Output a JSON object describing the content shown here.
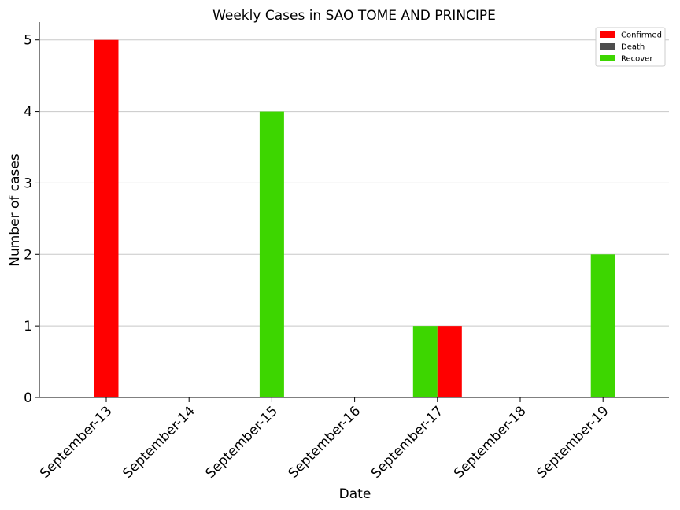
{
  "chart_data": {
    "type": "bar",
    "title": "Weekly Cases in SAO TOME AND PRINCIPE",
    "xlabel": "Date",
    "ylabel": "Number of cases",
    "categories": [
      "September-13",
      "September-14",
      "September-15",
      "September-16",
      "September-17",
      "September-18",
      "September-19"
    ],
    "series": [
      {
        "name": "Confirmed",
        "color": "#ff0000",
        "values": [
          5,
          0,
          0,
          0,
          1,
          0,
          0
        ]
      },
      {
        "name": "Death",
        "color": "#4d4d4d",
        "values": [
          0,
          0,
          0,
          0,
          0,
          0,
          0
        ]
      },
      {
        "name": "Recover",
        "color": "#3dd600",
        "values": [
          0,
          0,
          4,
          0,
          1,
          0,
          2
        ]
      }
    ],
    "ylim": [
      0,
      5.25
    ],
    "yticks": [
      0,
      1,
      2,
      3,
      4,
      5
    ],
    "grid": true,
    "legend_position": "top-right"
  }
}
